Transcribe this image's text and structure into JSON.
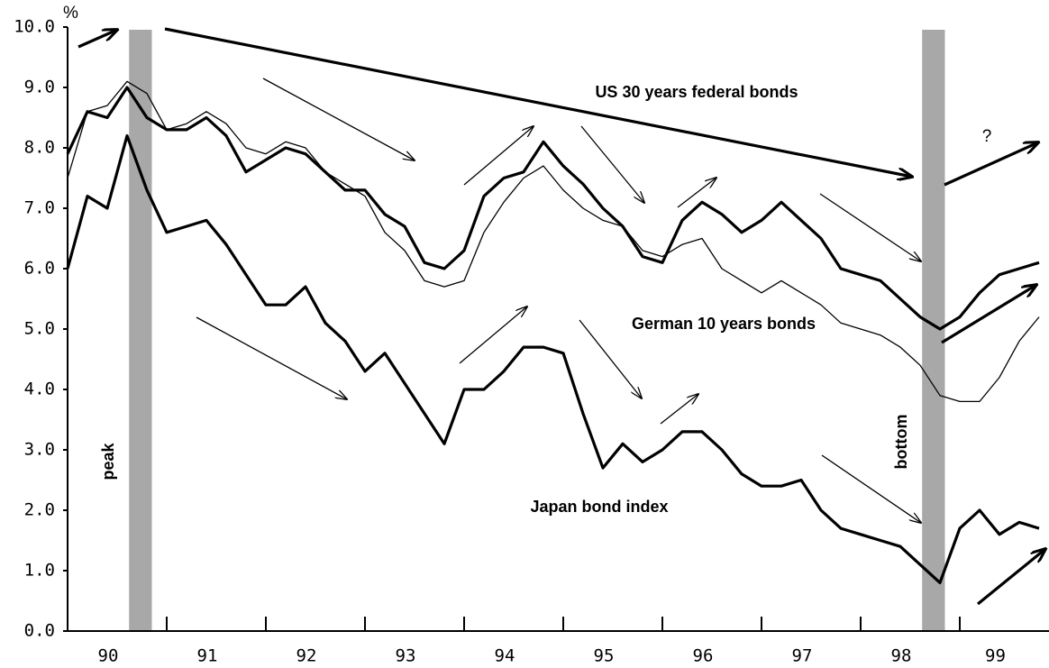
{
  "chart_data": {
    "type": "line",
    "unit_label": "%",
    "x": [
      90.0,
      90.2,
      90.4,
      90.6,
      90.8,
      91.0,
      91.2,
      91.4,
      91.6,
      91.8,
      92.0,
      92.2,
      92.4,
      92.6,
      92.8,
      93.0,
      93.2,
      93.4,
      93.6,
      93.8,
      94.0,
      94.2,
      94.4,
      94.6,
      94.8,
      95.0,
      95.2,
      95.4,
      95.6,
      95.8,
      96.0,
      96.2,
      96.4,
      96.6,
      96.8,
      97.0,
      97.2,
      97.4,
      97.6,
      97.8,
      98.0,
      98.2,
      98.4,
      98.6,
      98.8,
      99.0,
      99.2,
      99.4,
      99.6,
      99.8
    ],
    "series": [
      {
        "name": "US 30 years federal bonds",
        "color": "#000000",
        "values": [
          7.9,
          8.6,
          8.5,
          9.0,
          8.5,
          8.3,
          8.3,
          8.5,
          8.2,
          7.6,
          7.8,
          8.0,
          7.9,
          7.6,
          7.3,
          7.3,
          6.9,
          6.7,
          6.1,
          6.0,
          6.3,
          7.2,
          7.5,
          7.6,
          8.1,
          7.7,
          7.4,
          7.0,
          6.7,
          6.2,
          6.1,
          6.8,
          7.1,
          6.9,
          6.6,
          6.8,
          7.1,
          6.8,
          6.5,
          6.0,
          5.9,
          5.8,
          5.5,
          5.2,
          5.0,
          5.2,
          5.6,
          5.9,
          6.0,
          6.1
        ]
      },
      {
        "name": "German 10 years bonds",
        "color": "#000000",
        "values": [
          7.5,
          8.6,
          8.7,
          9.1,
          8.9,
          8.3,
          8.4,
          8.6,
          8.4,
          8.0,
          7.9,
          8.1,
          8.0,
          7.6,
          7.4,
          7.2,
          6.6,
          6.3,
          5.8,
          5.7,
          5.8,
          6.6,
          7.1,
          7.5,
          7.7,
          7.3,
          7.0,
          6.8,
          6.7,
          6.3,
          6.2,
          6.4,
          6.5,
          6.0,
          5.8,
          5.6,
          5.8,
          5.6,
          5.4,
          5.1,
          5.0,
          4.9,
          4.7,
          4.4,
          3.9,
          3.8,
          3.8,
          4.2,
          4.8,
          5.2
        ]
      },
      {
        "name": "Japan bond index",
        "color": "#000000",
        "values": [
          6.0,
          7.2,
          7.0,
          8.2,
          7.3,
          6.6,
          6.7,
          6.8,
          6.4,
          5.9,
          5.4,
          5.4,
          5.7,
          5.1,
          4.8,
          4.3,
          4.6,
          4.1,
          3.6,
          3.1,
          4.0,
          4.0,
          4.3,
          4.7,
          4.7,
          4.6,
          3.6,
          2.7,
          3.1,
          2.8,
          3.0,
          3.3,
          3.3,
          3.0,
          2.6,
          2.4,
          2.4,
          2.5,
          2.0,
          1.7,
          1.6,
          1.5,
          1.4,
          1.1,
          0.8,
          1.7,
          2.0,
          1.6,
          1.8,
          1.7
        ]
      }
    ],
    "shaded_regions": [
      {
        "label": "peak",
        "x": [
          90.62,
          90.85
        ],
        "color": "#a8a8a8"
      },
      {
        "label": "bottom",
        "x": [
          98.62,
          98.85
        ],
        "color": "#a8a8a8"
      }
    ],
    "annotations": [
      "?"
    ],
    "xlim": [
      90,
      99.9
    ],
    "xticks": [
      90,
      91,
      92,
      93,
      94,
      95,
      96,
      97,
      98,
      99
    ],
    "ylim": [
      0,
      10
    ],
    "yticks": [
      {
        "value": 0,
        "label": "0.0"
      },
      {
        "value": 1,
        "label": "1.0"
      },
      {
        "value": 2,
        "label": "2.0"
      },
      {
        "value": 3,
        "label": "3.0"
      },
      {
        "value": 4,
        "label": "4.0"
      },
      {
        "value": 5,
        "label": "5.0"
      },
      {
        "value": 6,
        "label": "6.0"
      },
      {
        "value": 7,
        "label": "7.0"
      },
      {
        "value": 8,
        "label": "8.0"
      },
      {
        "value": 9,
        "label": "9.0"
      },
      {
        "value": 10,
        "label": "10.0"
      }
    ],
    "grid": false
  }
}
